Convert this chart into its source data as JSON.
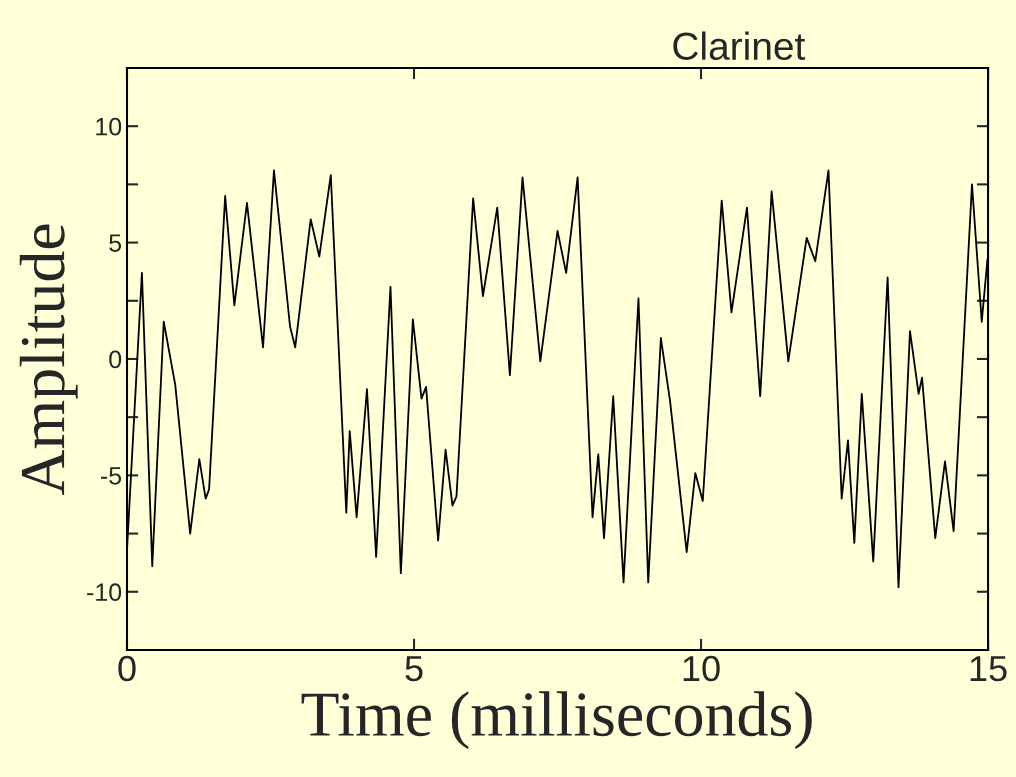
{
  "chart_data": {
    "type": "line",
    "title": "Clarinet",
    "xlabel": "Time (milliseconds)",
    "ylabel": "Amplitude",
    "xlim": [
      0,
      15
    ],
    "xticks": [
      0,
      5,
      10,
      15
    ],
    "ylim": [
      -12.5,
      12.5
    ],
    "yticks": [
      -10,
      {
        "value": -7.5,
        "label": null
      },
      -5,
      {
        "value": -2.5,
        "label": null
      },
      0,
      {
        "value": 2.5,
        "label": null
      },
      5,
      {
        "value": 7.5,
        "label": null
      },
      10
    ],
    "grid": false,
    "legend": false,
    "marker": "none",
    "line_style": "solid",
    "series": [
      {
        "color": "#000000",
        "x": [
          0,
          0.26,
          0.44,
          0.64,
          0.84,
          1.1,
          1.26,
          1.37,
          1.43,
          1.71,
          1.87,
          2.09,
          2.37,
          2.56,
          2.84,
          2.93,
          3.2,
          3.35,
          3.55,
          3.82,
          3.88,
          4.0,
          4.18,
          4.34,
          4.59,
          4.77,
          4.98,
          5.13,
          5.21,
          5.42,
          5.55,
          5.67,
          5.74,
          6.03,
          6.2,
          6.45,
          6.67,
          6.89,
          7.2,
          7.5,
          7.65,
          7.85,
          8.11,
          8.21,
          8.31,
          8.47,
          8.65,
          8.91,
          9.08,
          9.3,
          9.46,
          9.75,
          9.9,
          10.03,
          10.36,
          10.53,
          10.8,
          11.03,
          11.23,
          11.52,
          11.84,
          11.99,
          12.22,
          12.45,
          12.56,
          12.67,
          12.8,
          13.0,
          13.25,
          13.44,
          13.64,
          13.79,
          13.85,
          14.08,
          14.25,
          14.4,
          14.72,
          14.89,
          14.99
        ],
        "values": [
          -8.2,
          3.7,
          -8.9,
          1.6,
          -1.1,
          -7.5,
          -4.3,
          -6.0,
          -5.6,
          7.0,
          2.3,
          6.7,
          0.5,
          8.1,
          1.4,
          0.5,
          6.0,
          4.4,
          7.9,
          -6.6,
          -3.1,
          -6.8,
          -1.3,
          -8.5,
          3.1,
          -9.2,
          1.7,
          -1.7,
          -1.2,
          -7.8,
          -3.9,
          -6.3,
          -5.9,
          6.9,
          2.7,
          6.5,
          -0.7,
          7.8,
          -0.1,
          5.5,
          3.7,
          7.8,
          -6.8,
          -4.1,
          -7.7,
          -1.6,
          -9.6,
          2.6,
          -9.6,
          0.9,
          -1.8,
          -8.3,
          -4.9,
          -6.1,
          6.8,
          2.0,
          6.5,
          -1.6,
          7.2,
          -0.1,
          5.2,
          4.2,
          8.1,
          -6.0,
          -3.5,
          -7.9,
          -1.5,
          -8.7,
          3.5,
          -9.8,
          1.2,
          -1.5,
          -0.8,
          -7.7,
          -4.4,
          -7.4,
          7.5,
          1.6,
          4.3
        ]
      }
    ]
  }
}
